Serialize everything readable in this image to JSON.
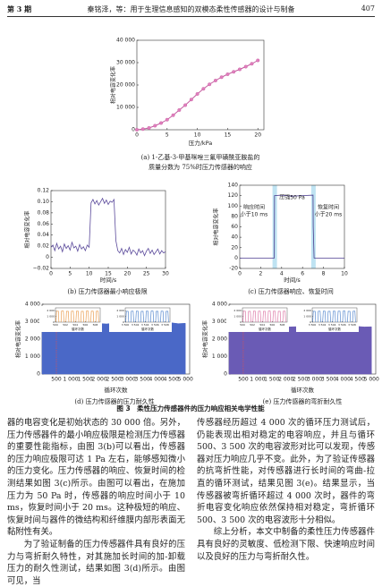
{
  "header": {
    "left": "第 3 期",
    "center": "秦铭泽，等：用于生理信息感知的双模态柔性传感器的设计与制备",
    "right": "407"
  },
  "figures": [
    {
      "type": "line",
      "ylabel": "相对电容变化率",
      "xlabel": "压力/kPa",
      "caption": [
        "(a) 1-乙基-3-甲基咪唑三氟甲磺酰亚胺盐的",
        "质量分数为 75%时压力传感器的响应"
      ],
      "xlim": [
        0,
        21
      ],
      "ylim": [
        0,
        40000
      ],
      "xticks": [
        0,
        5,
        10,
        15,
        20
      ],
      "yticks": [
        0,
        {
          "value": 10000,
          "label": "10 000"
        },
        {
          "value": 20000,
          "label": "20 000"
        },
        {
          "value": 30000,
          "label": "30 000"
        },
        {
          "value": 40000,
          "label": "40 000"
        }
      ],
      "series": [
        {
          "color": "#c45a9e",
          "markers": true,
          "x": [
            0,
            1,
            2,
            3,
            4,
            5,
            6,
            7,
            8,
            9,
            10,
            11,
            12,
            13,
            14,
            15,
            16,
            17,
            18,
            19,
            20
          ],
          "values": [
            0,
            300,
            800,
            1800,
            3000,
            4500,
            6500,
            8800,
            11000,
            13500,
            16000,
            18300,
            20300,
            22000,
            23500,
            24800,
            25900,
            27000,
            28200,
            29500,
            31000
          ]
        }
      ]
    },
    {
      "type": "line",
      "ylabel": "相对电容变化率",
      "xlabel": "时间/s",
      "caption": [
        "(b) 压力传感器最小响应极限"
      ],
      "xlim": [
        0,
        30
      ],
      "ylim": [
        -0.02,
        0.12
      ],
      "xticks": [
        0,
        5,
        10,
        15,
        20,
        25,
        30
      ],
      "yticks": [
        {
          "value": -0.02,
          "label": "−0.02"
        },
        0,
        0.02,
        0.04,
        0.06,
        0.08,
        {
          "value": 0.1,
          "label": "0.10"
        },
        0.12
      ],
      "series": [
        {
          "color": "#5b4a9b",
          "markers": false,
          "x": [
            0,
            0.5,
            1,
            1.5,
            2,
            2.5,
            3,
            3.5,
            4,
            4.5,
            5,
            5.5,
            6,
            6.5,
            7,
            7.5,
            8,
            8.5,
            9,
            9.5,
            10,
            10.5,
            11,
            11.5,
            12,
            12.5,
            13,
            13.5,
            14,
            14.5,
            15,
            15.5,
            16,
            16.5,
            17,
            17.5,
            18,
            18.5,
            19,
            19.5,
            20,
            20.5,
            21,
            21.5,
            22,
            22.5,
            23,
            23.5,
            24,
            24.5,
            25,
            25.5,
            26,
            26.5,
            27,
            27.5,
            28,
            28.5,
            29,
            29.5,
            30
          ],
          "values": [
            0.018,
            0.022,
            0.012,
            0.025,
            0.015,
            0.02,
            0.01,
            0.024,
            0.016,
            0.021,
            0.013,
            0.027,
            0.017,
            0.02,
            0.011,
            0.023,
            0.015,
            0.019,
            0.012,
            0.022,
            0.018,
            0.098,
            0.104,
            0.096,
            0.102,
            0.094,
            0.1,
            0.106,
            0.097,
            0.103,
            0.095,
            0.101,
            0.099,
            0.104,
            0.03,
            0.012,
            0.008,
            0.016,
            0.005,
            0.014,
            0.009,
            0.018,
            0.006,
            0.013,
            0.01,
            0.004,
            0.015,
            0.008,
            0.012,
            0.003,
            0.011,
            0.016,
            0.007,
            0.013,
            0.005,
            0.01,
            0.015,
            0.006,
            0.012,
            0.008,
            0.01
          ]
        }
      ]
    },
    {
      "type": "line",
      "ylabel": "相对电容变化率",
      "xlabel": "时间/s",
      "caption": [
        "(c) 压力传感器响应、恢复时间"
      ],
      "xlim": [
        0,
        10
      ],
      "ylim": [
        -20,
        140
      ],
      "xticks": [
        0,
        2,
        4,
        6,
        8,
        10
      ],
      "yticks": [
        -20,
        0,
        20,
        40,
        60,
        80,
        100,
        120,
        140
      ],
      "annotations": [
        [
          "响应时间",
          "小于10 ms"
        ],
        [
          "压强50 Pa"
        ],
        [
          "恢复时间",
          "小于20 ms"
        ]
      ],
      "series": [
        {
          "color": "#4b3d8f",
          "markers": false,
          "x": [
            0,
            1,
            2,
            3,
            3.3,
            3.32,
            4,
            5,
            6,
            7,
            7.02,
            7.1,
            8,
            9,
            10
          ],
          "values": [
            0,
            0,
            0,
            0,
            0,
            120,
            121,
            119,
            120,
            121,
            60,
            0,
            0,
            0,
            0
          ]
        }
      ]
    },
    {
      "type": "area",
      "ylabel": "相对电容变化率",
      "xlabel": "循环次数",
      "caption": [
        "(d) 压力传感器的压力耐久性"
      ],
      "xlim": [
        0,
        5150
      ],
      "ylim": [
        0,
        4000
      ],
      "xticks": [
        500,
        {
          "value": 1000,
          "label": "1 000"
        },
        {
          "value": 1500,
          "label": "1 500"
        },
        {
          "value": 2000,
          "label": "2 000"
        },
        {
          "value": 2500,
          "label": "2 500"
        },
        {
          "value": 3000,
          "label": "3 000"
        },
        {
          "value": 3500,
          "label": "3 500"
        },
        {
          "value": 4000,
          "label": "4 000"
        },
        {
          "value": 4500,
          "label": "4 500"
        },
        {
          "value": 5000,
          "label": "5 000"
        }
      ],
      "yticks": [
        0,
        {
          "value": 1000,
          "label": "1 000"
        },
        {
          "value": 2000,
          "label": "2 000"
        },
        {
          "value": 3000,
          "label": "3 000"
        },
        {
          "value": 4000,
          "label": "4 000"
        }
      ],
      "series": [
        {
          "color": "#4a68c7",
          "x": [
            0,
            250,
            500,
            750,
            1000,
            1250,
            1500,
            1750,
            2000,
            2250,
            2500,
            2750,
            3000,
            3250,
            3500,
            3750,
            4000,
            4250,
            4500,
            4750,
            5000
          ],
          "values": [
            2950,
            2900,
            2930,
            2880,
            2920,
            2910,
            2890,
            2940,
            2900,
            2870,
            2920,
            2900,
            2930,
            2890,
            2910,
            2880,
            2920,
            2900,
            2940,
            2890,
            2910
          ]
        }
      ],
      "insets": [
        {
          "xlabel": "循环次数",
          "color": "#e8913a",
          "ylim": [
            0,
            2500
          ],
          "yticks": [
            0,
            {
              "value": 1000,
              "label": "1 000"
            },
            {
              "value": 2000,
              "label": "2 000"
            }
          ],
          "xlim": [
            500,
            509
          ],
          "xticks": [
            500,
            502,
            504,
            506,
            508
          ],
          "x": [
            500,
            501,
            502,
            503,
            504,
            505,
            506,
            507,
            508
          ],
          "values": [
            1900,
            1920,
            1880,
            1910,
            1900,
            1890,
            1920,
            1900,
            1910
          ]
        },
        {
          "xlabel": "循环次数",
          "color": "#3f78c8",
          "ylim": [
            0,
            2500
          ],
          "yticks": [
            0,
            {
              "value": 1000,
              "label": "1 000"
            },
            {
              "value": 2000,
              "label": "2 000"
            }
          ],
          "xlim": [
            3500,
            3509
          ],
          "xticks": [
            {
              "value": 3500,
              "label": "3 500"
            },
            {
              "value": 3502,
              "label": "3 502"
            },
            {
              "value": 3504,
              "label": "3 504"
            },
            {
              "value": 3506,
              "label": "3 506"
            },
            {
              "value": 3508,
              "label": "3 508"
            }
          ],
          "x": [
            3500,
            3501,
            3502,
            3503,
            3504,
            3505,
            3506,
            3507,
            3508
          ],
          "values": [
            1880,
            1900,
            1910,
            1890,
            1900,
            1920,
            1890,
            1900,
            1880
          ]
        }
      ]
    },
    {
      "type": "area",
      "ylabel": "相对电容变化率",
      "xlabel": "循环次数",
      "caption": [
        "(e) 压力传感器的弯折耐久性"
      ],
      "xlim": [
        0,
        5150
      ],
      "ylim": [
        0,
        4000
      ],
      "xticks": [
        500,
        {
          "value": 1000,
          "label": "1 000"
        },
        {
          "value": 1500,
          "label": "1 500"
        },
        {
          "value": 2000,
          "label": "2 000"
        },
        {
          "value": 2500,
          "label": "2 500"
        },
        {
          "value": 3000,
          "label": "3 000"
        },
        {
          "value": 3500,
          "label": "3 500"
        },
        {
          "value": 4000,
          "label": "4 000"
        },
        {
          "value": 4500,
          "label": "4 500"
        },
        {
          "value": 5000,
          "label": "5 000"
        }
      ],
      "yticks": [
        0,
        {
          "value": 1000,
          "label": "1 000"
        },
        {
          "value": 2000,
          "label": "2 000"
        },
        {
          "value": 3000,
          "label": "3 000"
        },
        {
          "value": 4000,
          "label": "4 000"
        }
      ],
      "series": [
        {
          "color": "#6a5bb5",
          "x": [
            0,
            250,
            500,
            750,
            1000,
            1250,
            1500,
            1750,
            2000,
            2250,
            2500,
            2750,
            3000,
            3250,
            3500,
            3750,
            4000,
            4250,
            4500,
            4750,
            5000
          ],
          "values": [
            2750,
            2700,
            2720,
            2690,
            2730,
            2710,
            2700,
            2740,
            2690,
            2710,
            2720,
            2700,
            2730,
            2680,
            2710,
            2700,
            2720,
            2690,
            2730,
            2700,
            2710
          ]
        }
      ],
      "insets": [
        {
          "xlabel": "循环次数",
          "color": "#d9679c",
          "ylim": [
            0,
            2500
          ],
          "yticks": [
            0,
            {
              "value": 1000,
              "label": "1 000"
            },
            {
              "value": 2000,
              "label": "2 000"
            }
          ],
          "xlim": [
            500,
            509
          ],
          "xticks": [
            500,
            502,
            504,
            506,
            508
          ],
          "x": [
            500,
            501,
            502,
            503,
            504,
            505,
            506,
            507,
            508
          ],
          "values": [
            1900,
            1880,
            1910,
            1900,
            1890,
            1920,
            1900,
            1880,
            1910
          ]
        },
        {
          "xlabel": "循环次数",
          "color": "#3f78c8",
          "ylim": [
            0,
            2500
          ],
          "yticks": [
            0,
            {
              "value": 1000,
              "label": "1 000"
            },
            {
              "value": 2000,
              "label": "2 000"
            }
          ],
          "xlim": [
            3500,
            3509
          ],
          "xticks": [
            {
              "value": 3500,
              "label": "3 500"
            },
            {
              "value": 3502,
              "label": "3 502"
            },
            {
              "value": 3504,
              "label": "3 504"
            },
            {
              "value": 3506,
              "label": "3 506"
            },
            {
              "value": 3508,
              "label": "3 508"
            }
          ],
          "x": [
            3500,
            3501,
            3502,
            3503,
            3504,
            3505,
            3506,
            3507,
            3508
          ],
          "values": [
            1890,
            1910,
            1900,
            1880,
            1910,
            1900,
            1920,
            1890,
            1900
          ]
        }
      ]
    }
  ],
  "figure_caption": "图 3　柔性压力传感器件的压力响应相关电学性能",
  "body": {
    "left": [
      "器的电容变化是初始状态的 30 000 倍。另外，压力传感器件的最小响应极限是检测压力传感器的重要性能指标，由图 3(b)可以看出，传感器的压力响应极限可达 1 Pa 左右，能够感知微小的压力变化。压力传感器的响应、恢复时间的检测结果如图 3(c)所示。由图可以看出，在施加压力为 50 Pa 时，传感器的响应时间小于 10 ms，恢复时间小于 20 ms。这种极短的响应、恢复时间与器件的微结构和纤维膜内部形表面无黏附性有关。",
      "为了验证制备的压力传感器件具有良好的压力与弯折耐久特性，对其施加长时间的加-卸载压力的耐久性测试，结果如图 3(d)所示。由图可见，当"
    ],
    "right": [
      "传感器经历超过 4 000 次的循环压力测试后，仍能表现出相对稳定的电容响应，并且与循环 500、3 500 次的电容波形对比可以发现，传感器对压力响应几乎不变。此外，为了验证传感器的抗弯折性能，对传感器进行长时间的弯曲-拉直的循环测试，结果见图 3(e)。结果显示，当传感器被弯折循环超过 4 000 次时，器件的弯折电容变化响应依然保持相对稳定，弯折循环 500、3 500 次的电容波形十分相似。",
      "综上分析，本文中制备的柔性压力传感器件具有良好的灵敏度、低检测下限、快速响应时间以及良好的压力与弯折耐久性。"
    ]
  }
}
